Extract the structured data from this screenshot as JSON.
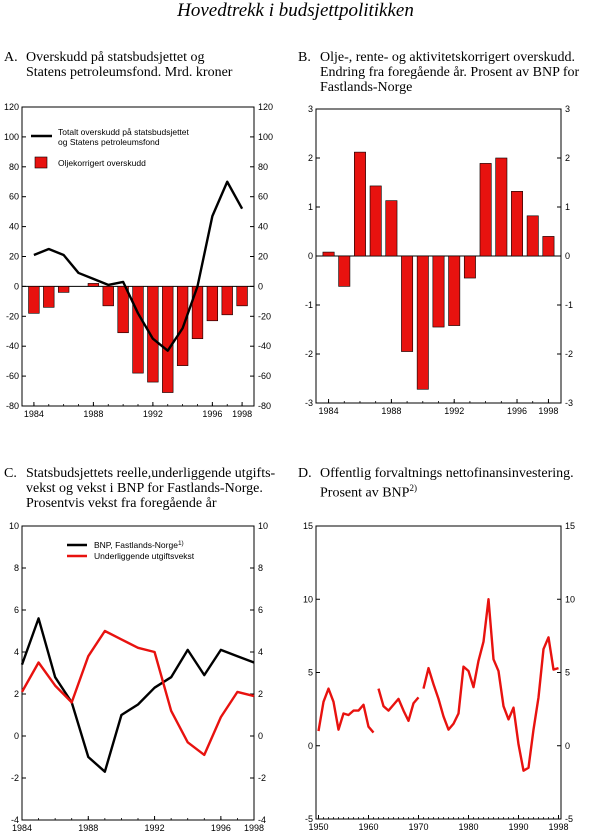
{
  "page_title": "Hovedtrekk i budsjettpolitikken",
  "colors": {
    "red": "#e8120f",
    "black": "#000000",
    "bar_outline": "#000000"
  },
  "chart_data": [
    {
      "id": "A",
      "letter": "A.",
      "title": "Overskudd på statsbudsjettet og\nStatens petroleumsfond. Mrd.  kroner",
      "type": "bar+line",
      "ylim": [
        -80,
        120
      ],
      "yticks": [
        -80,
        -60,
        -40,
        -20,
        0,
        20,
        40,
        60,
        80,
        100,
        120
      ],
      "xlim": [
        1983.2,
        1998.8
      ],
      "xticks": [
        1984,
        1988,
        1992,
        1996,
        1998
      ],
      "xticklabels": [
        "1984",
        "1988",
        "1992",
        "1996",
        "1998"
      ],
      "legend": [
        "Totalt overskudd på statsbudsjettet\nog Statens petroleumsfond",
        "Oljekorrigert overskudd"
      ],
      "series": [
        {
          "name": "Oljekorrigert overskudd",
          "kind": "bar",
          "color": "#e8120f",
          "x": [
            1984,
            1985,
            1986,
            1987,
            1988,
            1989,
            1990,
            1991,
            1992,
            1993,
            1994,
            1995,
            1996,
            1997,
            1998
          ],
          "y": [
            -18,
            -14,
            -4,
            0,
            2,
            -13,
            -31,
            -58,
            -64,
            -71,
            -53,
            -35,
            -23,
            -19,
            -13
          ]
        },
        {
          "name": "Totalt overskudd på statsbudsjettet og Statens petroleumsfond",
          "kind": "line",
          "color": "#000000",
          "x": [
            1984,
            1985,
            1986,
            1987,
            1988,
            1989,
            1990,
            1991,
            1992,
            1993,
            1994,
            1995,
            1996,
            1997,
            1998
          ],
          "y": [
            21,
            25,
            21,
            9,
            5,
            1,
            3,
            -18,
            -35,
            -43,
            -28,
            0,
            47,
            70,
            52
          ]
        }
      ]
    },
    {
      "id": "B",
      "letter": "B.",
      "title": "Olje-, rente- og aktivitetskorrigert overskudd.\nEndring fra foregående år. Prosent av BNP for\nFastlands-Norge",
      "type": "bar",
      "ylim": [
        -3,
        3
      ],
      "yticks": [
        -3,
        -2,
        -1,
        0,
        1,
        2,
        3
      ],
      "xlim": [
        1983.2,
        1998.8
      ],
      "xticks": [
        1984,
        1988,
        1992,
        1996,
        1998
      ],
      "xticklabels": [
        "1984",
        "1988",
        "1992",
        "1996",
        "1998"
      ],
      "series": [
        {
          "kind": "bar",
          "color": "#e8120f",
          "x": [
            1984,
            1985,
            1986,
            1987,
            1988,
            1989,
            1990,
            1991,
            1992,
            1993,
            1994,
            1995,
            1996,
            1997,
            1998
          ],
          "y": [
            0.08,
            -0.62,
            2.12,
            1.43,
            1.13,
            -1.95,
            -2.72,
            -1.45,
            -1.42,
            -0.45,
            1.89,
            2.0,
            1.32,
            0.82,
            0.4
          ]
        }
      ]
    },
    {
      "id": "C",
      "letter": "C.",
      "title": "Statsbudsjettets reelle,underliggende utgifts-\nvekst og vekst i BNP for Fastlands-Norge.\nProsentvis vekst fra foregående år",
      "type": "line",
      "ylim": [
        -4,
        10
      ],
      "yticks": [
        -4,
        -2,
        0,
        2,
        4,
        6,
        8,
        10
      ],
      "xlim": [
        1984,
        1998
      ],
      "xticks": [
        1984,
        1988,
        1992,
        1996,
        1998
      ],
      "xticklabels": [
        "1984",
        "1988",
        "1992",
        "1996",
        "1998"
      ],
      "legend": [
        "BNP, Fastlands-Norge",
        "Underliggende utgiftsvekst"
      ],
      "legend_superscript": "1)",
      "series": [
        {
          "name": "BNP, Fastlands-Norge",
          "color": "#000000",
          "x": [
            1984,
            1985,
            1986,
            1987,
            1988,
            1989,
            1990,
            1991,
            1992,
            1993,
            1994,
            1995,
            1996,
            1997,
            1998
          ],
          "y": [
            3.4,
            5.6,
            2.8,
            1.6,
            -1.0,
            -1.7,
            1.0,
            1.5,
            2.3,
            2.8,
            4.1,
            2.9,
            4.1,
            3.8,
            3.5
          ]
        },
        {
          "name": "Underliggende utgiftsvekst",
          "color": "#e8120f",
          "x": [
            1984,
            1985,
            1986,
            1987,
            1988,
            1989,
            1990,
            1991,
            1992,
            1993,
            1994,
            1995,
            1996,
            1997,
            1998
          ],
          "y": [
            2.1,
            3.5,
            2.4,
            1.6,
            3.8,
            5.0,
            4.6,
            4.2,
            4.0,
            1.2,
            -0.3,
            -0.9,
            0.9,
            2.1,
            1.9
          ]
        }
      ]
    },
    {
      "id": "D",
      "letter": "D.",
      "title": "Offentlig forvaltnings nettofinansinvestering.\nProsent av BNP",
      "title_superscript": "2)",
      "type": "line",
      "ylim": [
        -5,
        15
      ],
      "yticks": [
        -5,
        0,
        5,
        10,
        15
      ],
      "xlim": [
        1949.5,
        1998.5
      ],
      "xticks": [
        1950,
        1960,
        1970,
        1980,
        1990,
        1998
      ],
      "xticklabels": [
        "1950",
        "1960",
        "1970",
        "1980",
        "1990",
        "1998"
      ],
      "series": [
        {
          "color": "#e8120f",
          "segments": [
            {
              "x": [
                1950,
                1951,
                1952,
                1953,
                1954,
                1955,
                1956,
                1957,
                1958,
                1959,
                1960,
                1961
              ],
              "y": [
                1.0,
                3.0,
                3.9,
                3.0,
                1.1,
                2.2,
                2.1,
                2.4,
                2.4,
                2.8,
                1.3,
                0.9
              ]
            },
            {
              "x": [
                1962,
                1963,
                1964,
                1965,
                1966,
                1967,
                1968,
                1969,
                1970
              ],
              "y": [
                3.9,
                2.7,
                2.4,
                2.8,
                3.2,
                2.4,
                1.7,
                2.9,
                3.3
              ]
            },
            {
              "x": [
                1971,
                1972,
                1973,
                1974,
                1975,
                1976,
                1977,
                1978,
                1979,
                1980,
                1981,
                1982,
                1983,
                1984,
                1985,
                1986,
                1987,
                1988,
                1989,
                1990,
                1991,
                1992,
                1993,
                1994,
                1995,
                1996,
                1997,
                1998
              ],
              "y": [
                3.9,
                5.3,
                4.2,
                3.2,
                2.0,
                1.1,
                1.5,
                2.2,
                5.4,
                5.1,
                4.0,
                5.8,
                7.1,
                10.0,
                5.9,
                5.1,
                2.7,
                1.8,
                2.6,
                0.1,
                -1.7,
                -1.5,
                1.1,
                3.3,
                6.6,
                7.4,
                5.2,
                5.3
              ]
            }
          ]
        }
      ]
    }
  ]
}
